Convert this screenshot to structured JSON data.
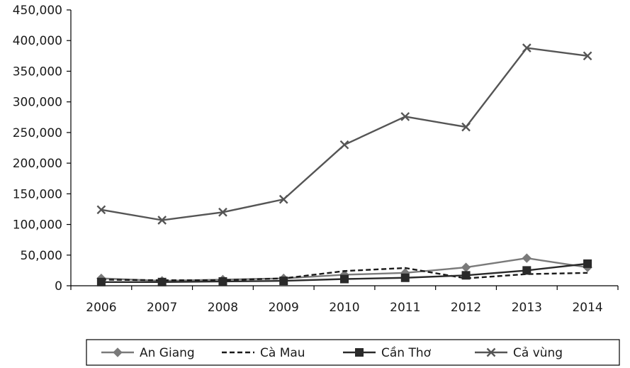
{
  "chart_data": {
    "type": "line",
    "categories": [
      "2006",
      "2007",
      "2008",
      "2009",
      "2010",
      "2011",
      "2012",
      "2013",
      "2014"
    ],
    "ylim": [
      0,
      450000
    ],
    "yticks": [
      0,
      50000,
      100000,
      150000,
      200000,
      250000,
      300000,
      350000,
      400000,
      450000
    ],
    "ytick_labels": [
      "0",
      "50,000",
      "100,000",
      "150,000",
      "200,000",
      "250,000",
      "300,000",
      "350,000",
      "400,000",
      "450,000"
    ],
    "grid": false,
    "legend_position": "bottom",
    "series": [
      {
        "name": "An Giang",
        "marker": "diamond",
        "dash": "solid",
        "color": "#7a7a7a",
        "values": [
          12000,
          8000,
          10000,
          12000,
          18000,
          21000,
          30000,
          45000,
          30000
        ]
      },
      {
        "name": "Cà Mau",
        "marker": "none",
        "dash": "dashed",
        "color": "#1a1a1a",
        "values": [
          10000,
          9000,
          9000,
          12000,
          24000,
          29000,
          12000,
          19000,
          21000
        ]
      },
      {
        "name": "Cần Thơ",
        "marker": "square",
        "dash": "solid",
        "color": "#2a2a2a",
        "values": [
          6000,
          6000,
          7000,
          8000,
          11000,
          13000,
          17000,
          25000,
          36000
        ]
      },
      {
        "name": "Cả vùng",
        "marker": "x",
        "dash": "solid",
        "color": "#555555",
        "values": [
          124000,
          107000,
          120000,
          141000,
          230000,
          276000,
          259000,
          388000,
          375000
        ]
      }
    ]
  }
}
